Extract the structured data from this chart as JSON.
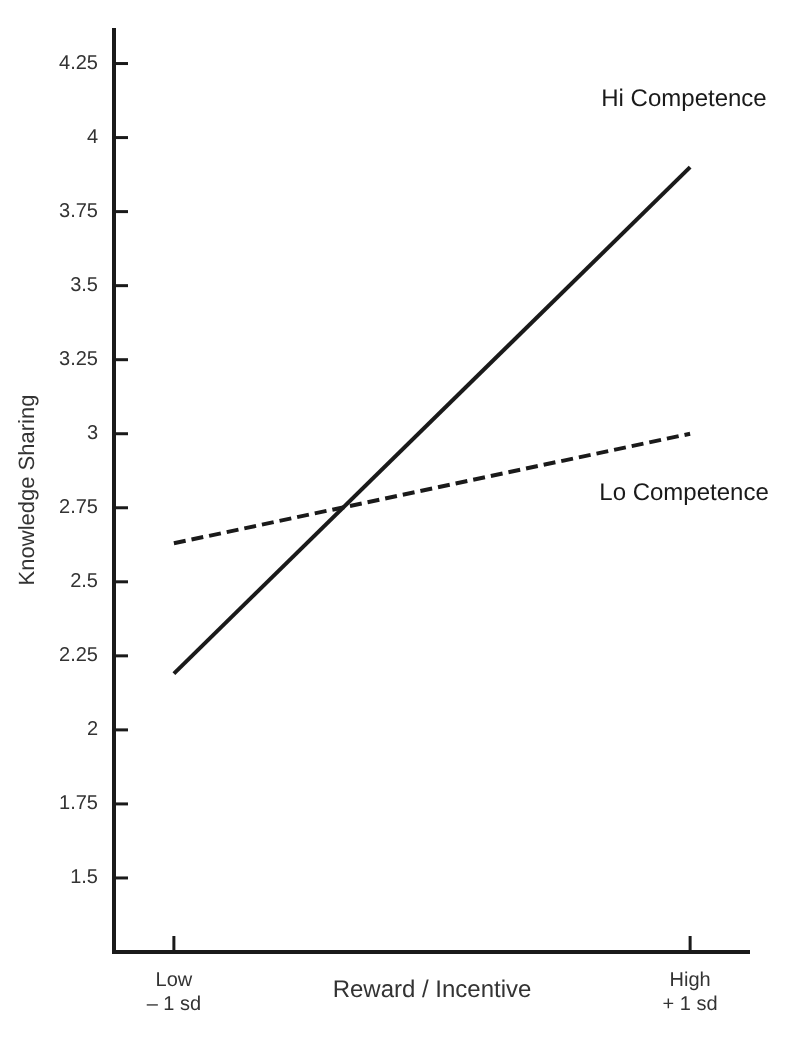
{
  "chart_data": {
    "type": "line",
    "xlabel": "Reward / Incentive",
    "ylabel": "Knowledge Sharing",
    "categories": [
      "Low\n– 1 sd",
      "High\n+ 1 sd"
    ],
    "series": [
      {
        "name": "Hi Competence",
        "color": "#1a1a1a",
        "line_style": "solid",
        "values": [
          2.19,
          3.9
        ]
      },
      {
        "name": "Lo Competence",
        "color": "#1a1a1a",
        "line_style": "dashed",
        "values": [
          2.63,
          3.0
        ]
      }
    ],
    "ylim": [
      1.25,
      4.37
    ],
    "yticks": [
      1.5,
      1.75,
      2,
      2.25,
      2.5,
      2.75,
      3,
      3.25,
      3.5,
      3.75,
      4,
      4.25
    ],
    "grid": false,
    "legend": false,
    "marker": "none"
  }
}
